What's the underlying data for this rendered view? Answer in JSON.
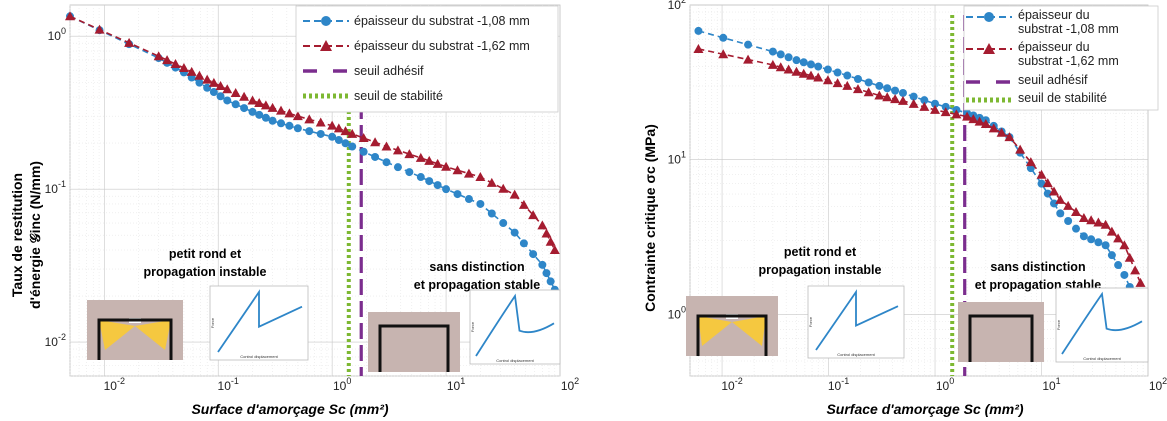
{
  "colors": {
    "blue": "#2E86C8",
    "red": "#A51C30",
    "purple": "#7B2D8E",
    "green": "#7DB832",
    "thumb_bg": "#C7B4B0",
    "inset_curve": "#2E86C8"
  },
  "chart_data": [
    {
      "type": "line",
      "xscale": "log",
      "yscale": "log",
      "xlim": [
        0.005,
        100
      ],
      "ylim": [
        0.006,
        1.6
      ],
      "xticks": [
        0.01,
        0.1,
        1,
        10,
        100
      ],
      "xtick_labels": [
        "10^-2",
        "10^-1",
        "10^0",
        "10^1",
        "10^2"
      ],
      "yticks": [
        0.01,
        0.1,
        1
      ],
      "ytick_labels": [
        "10^-2",
        "10^-1",
        "10^0"
      ],
      "ylabel_line1": "Taux de restitution",
      "ylabel_line2": "d'énergie 𝒢inc (N/mm)",
      "xlabel": "Surface d'amorçage Sc (mm²)",
      "grid": true,
      "legend_position": "top-right",
      "series": [
        {
          "name": "épaisseur du substrat -1,08 mm",
          "marker": "circle",
          "x": [
            0.005,
            0.03,
            0.05,
            0.08,
            0.12,
            0.2,
            0.3,
            0.5,
            1.0,
            1.5,
            3,
            6,
            10,
            20,
            40,
            70,
            90
          ],
          "y": [
            1.35,
            0.72,
            0.58,
            0.46,
            0.38,
            0.32,
            0.28,
            0.25,
            0.22,
            0.19,
            0.15,
            0.12,
            0.1,
            0.08,
            0.052,
            0.032,
            0.022
          ]
        },
        {
          "name": "épaisseur du substrat -1,62 mm",
          "marker": "triangle",
          "x": [
            0.005,
            0.03,
            0.05,
            0.08,
            0.12,
            0.2,
            0.3,
            0.5,
            1.0,
            1.5,
            3,
            6,
            10,
            20,
            40,
            70,
            90
          ],
          "y": [
            1.35,
            0.74,
            0.62,
            0.52,
            0.45,
            0.38,
            0.34,
            0.3,
            0.26,
            0.23,
            0.19,
            0.16,
            0.14,
            0.12,
            0.092,
            0.058,
            0.04
          ]
        }
      ],
      "vlines": [
        {
          "name": "seuil adhésif",
          "x": 1.8,
          "style": "dashed"
        },
        {
          "name": "seuil de stabilité",
          "x": 1.4,
          "style": "dotted"
        }
      ],
      "annotations": [
        "petit rond et",
        "propagation instable",
        "sans distinction",
        "et propagation stable"
      ]
    },
    {
      "type": "line",
      "xscale": "log",
      "yscale": "log",
      "xlim": [
        0.005,
        100
      ],
      "ylim": [
        0.4,
        100
      ],
      "xticks": [
        0.01,
        0.1,
        1,
        10,
        100
      ],
      "xtick_labels": [
        "10^-2",
        "10^-1",
        "10^0",
        "10^1",
        "10^2"
      ],
      "yticks": [
        1,
        10,
        100
      ],
      "ytick_labels": [
        "10^0",
        "10^1",
        "10^2"
      ],
      "ylabel": "Contrainte critique σc (MPa)",
      "xlabel": "Surface d'amorçage Sc (mm²)",
      "grid": true,
      "legend_position": "top-right",
      "series": [
        {
          "name": "épaisseur du substrat -1,08 mm",
          "marker": "circle",
          "x": [
            0.006,
            0.03,
            0.05,
            0.08,
            0.15,
            0.3,
            0.5,
            1.0,
            2,
            3,
            5,
            10,
            15,
            25,
            40,
            60,
            85
          ],
          "y": [
            68,
            50,
            44,
            40,
            35,
            30,
            27,
            23,
            20,
            18,
            14,
            7.0,
            4.5,
            3.2,
            2.8,
            1.8,
            1.05
          ]
        },
        {
          "name": "épaisseur du substrat -1,62 mm",
          "marker": "triangle",
          "x": [
            0.006,
            0.03,
            0.05,
            0.08,
            0.15,
            0.3,
            0.5,
            1.0,
            2,
            3,
            5,
            10,
            15,
            25,
            40,
            60,
            85
          ],
          "y": [
            52,
            41,
            37,
            34,
            30,
            26,
            24,
            21,
            19,
            17,
            14,
            8.0,
            5.5,
            4.2,
            3.8,
            2.8,
            1.6
          ]
        }
      ],
      "vlines": [
        {
          "name": "seuil adhésif",
          "x": 1.9,
          "style": "dashed"
        },
        {
          "name": "seuil de stabilité",
          "x": 1.45,
          "style": "dotted"
        }
      ],
      "annotations": [
        "petit rond et",
        "propagation instable",
        "sans distinction",
        "et propagation stable"
      ]
    }
  ],
  "legends": [
    {
      "items": [
        {
          "label": "épaisseur du substrat -1,08 mm",
          "kind": "circle-dash"
        },
        {
          "label": "épaisseur du substrat -1,62 mm",
          "kind": "triangle-dash"
        },
        {
          "label": "seuil adhésif",
          "kind": "purple-dash"
        },
        {
          "label": "seuil de stabilité",
          "kind": "green-dot"
        }
      ]
    },
    {
      "items": [
        {
          "label_lines": [
            "épaisseur du",
            "substrat -1,08 mm"
          ],
          "kind": "circle-dash"
        },
        {
          "label_lines": [
            "épaisseur du",
            "substrat -1,62 mm"
          ],
          "kind": "triangle-dash"
        },
        {
          "label_lines": [
            "seuil adhésif"
          ],
          "kind": "purple-dash"
        },
        {
          "label_lines": [
            "seuil de stabilité"
          ],
          "kind": "green-dot"
        }
      ]
    }
  ],
  "insets": {
    "force_label": "Force",
    "disp_label": "Control displacement"
  }
}
